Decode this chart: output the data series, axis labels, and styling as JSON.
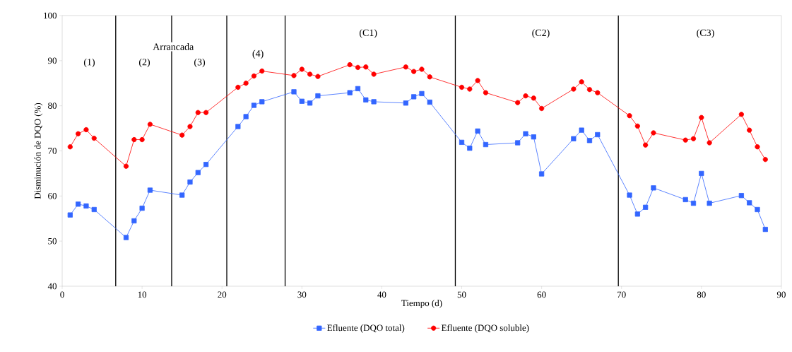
{
  "chart_data": {
    "type": "line",
    "xlabel": "Tiempo (d)",
    "ylabel": "Disminución de DQO (%)",
    "x": [
      1,
      2,
      3,
      4,
      8,
      9,
      10,
      11,
      15,
      16,
      17,
      18,
      22,
      23,
      24,
      25,
      29,
      30,
      31,
      32,
      36,
      37,
      38,
      39,
      43,
      44,
      45,
      46,
      50,
      51,
      52,
      53,
      57,
      58,
      59,
      60,
      64,
      65,
      66,
      67,
      71,
      72,
      73,
      74,
      78,
      79,
      80,
      81,
      85,
      86,
      87,
      88
    ],
    "series": [
      {
        "name": "Efluente (DQO total)",
        "color": "#3366ff",
        "marker": "square",
        "values": [
          55.8,
          58.2,
          57.8,
          57.0,
          50.8,
          54.5,
          57.3,
          61.3,
          60.2,
          63.1,
          65.2,
          67.0,
          75.4,
          77.6,
          80.1,
          80.9,
          83.1,
          81.0,
          80.6,
          82.2,
          82.9,
          83.8,
          81.3,
          80.9,
          80.6,
          82.0,
          82.7,
          80.8,
          71.9,
          70.6,
          74.4,
          71.4,
          71.8,
          73.8,
          73.1,
          64.9,
          72.7,
          74.6,
          72.3,
          73.6,
          60.2,
          56.0,
          57.5,
          61.8,
          59.2,
          58.4,
          65.0,
          58.4,
          60.1,
          58.5,
          57.0,
          52.6
        ]
      },
      {
        "name": "Efluente (DQO soluble)",
        "color": "#ff0000",
        "marker": "circle",
        "values": [
          70.9,
          73.8,
          74.7,
          72.8,
          66.6,
          72.5,
          72.5,
          75.9,
          73.5,
          75.4,
          78.5,
          78.5,
          84.1,
          85.0,
          86.6,
          87.7,
          86.7,
          88.1,
          87.0,
          86.5,
          89.1,
          88.5,
          88.6,
          87.0,
          88.6,
          87.6,
          88.1,
          86.4,
          84.1,
          83.7,
          85.6,
          82.9,
          80.7,
          82.2,
          81.7,
          79.4,
          83.7,
          85.3,
          83.6,
          82.9,
          77.8,
          75.5,
          71.3,
          74.0,
          72.4,
          72.7,
          77.4,
          71.8,
          78.1,
          74.6,
          70.9,
          68.1
        ]
      }
    ],
    "xlim": [
      0,
      90
    ],
    "xticks": [
      0,
      10,
      20,
      30,
      40,
      50,
      60,
      70,
      80,
      90
    ],
    "ylim": [
      40,
      100
    ],
    "yticks": [
      40,
      50,
      60,
      70,
      80,
      90,
      100
    ],
    "grid": false,
    "legend": "bottom",
    "line_style": "solid",
    "ref_lines": [
      {
        "axis": "x",
        "value": 6.7,
        "color": "#000000"
      },
      {
        "axis": "x",
        "value": 13.7,
        "color": "#000000"
      },
      {
        "axis": "x",
        "value": 20.6,
        "color": "#000000"
      },
      {
        "axis": "x",
        "value": 27.9,
        "color": "#000000"
      },
      {
        "axis": "x",
        "value": 49.2,
        "color": "#000000"
      },
      {
        "axis": "x",
        "value": 69.6,
        "color": "#000000"
      }
    ],
    "annotations": [
      {
        "text": "(1)",
        "x": 3.4,
        "y": 89.5
      },
      {
        "text": "Arrancada",
        "x": 13.9,
        "y": 93.1
      },
      {
        "text": "(2)",
        "x": 10.3,
        "y": 89.5
      },
      {
        "text": "(3)",
        "x": 17.2,
        "y": 89.5
      },
      {
        "text": "(4)",
        "x": 24.5,
        "y": 91.4
      },
      {
        "text": "(C1)",
        "x": 38.3,
        "y": 96
      },
      {
        "text": "(C2)",
        "x": 59.9,
        "y": 96
      },
      {
        "text": "(C3)",
        "x": 80.5,
        "y": 96
      }
    ]
  }
}
